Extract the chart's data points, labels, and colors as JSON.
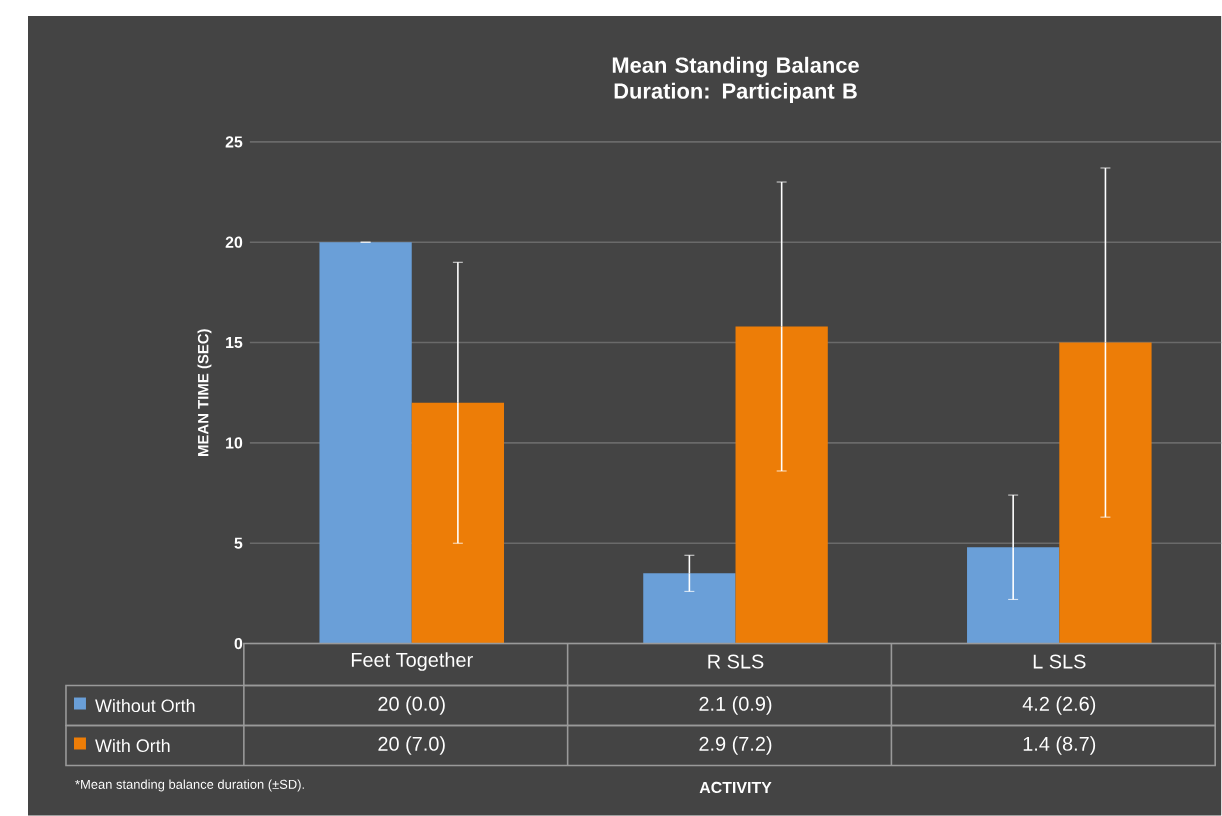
{
  "chart_data": {
    "type": "bar",
    "title": "Mean Standing Balance Duration: Participant B",
    "ylabel": "MEAN TIME (SEC)",
    "categories": [
      "Feet Together",
      "R SLS",
      "L SLS"
    ],
    "series": [
      {
        "name": "Without Orth",
        "color": "#6a9fd8",
        "values": [
          20,
          3.5,
          4.8
        ],
        "errors": [
          0.0,
          0.9,
          2.6
        ]
      },
      {
        "name": "With Orth",
        "color": "#ed7d07",
        "values": [
          12,
          15.8,
          15
        ],
        "errors": [
          7.0,
          7.2,
          8.7
        ]
      }
    ],
    "ylim": [
      0,
      25
    ],
    "yticks": [
      0,
      5,
      10,
      15,
      20,
      25
    ],
    "grid": "y",
    "legend": "bottom",
    "annotations": [
      "*Mean standing balance duration (±SD).",
      "ACTIVITY",
      "20 (0.0)",
      "2.1 (0.9)",
      "4.2 (2.6)",
      "20 (7.0)",
      "2.9 (7.2)",
      "1.4 (8.7)"
    ]
  }
}
